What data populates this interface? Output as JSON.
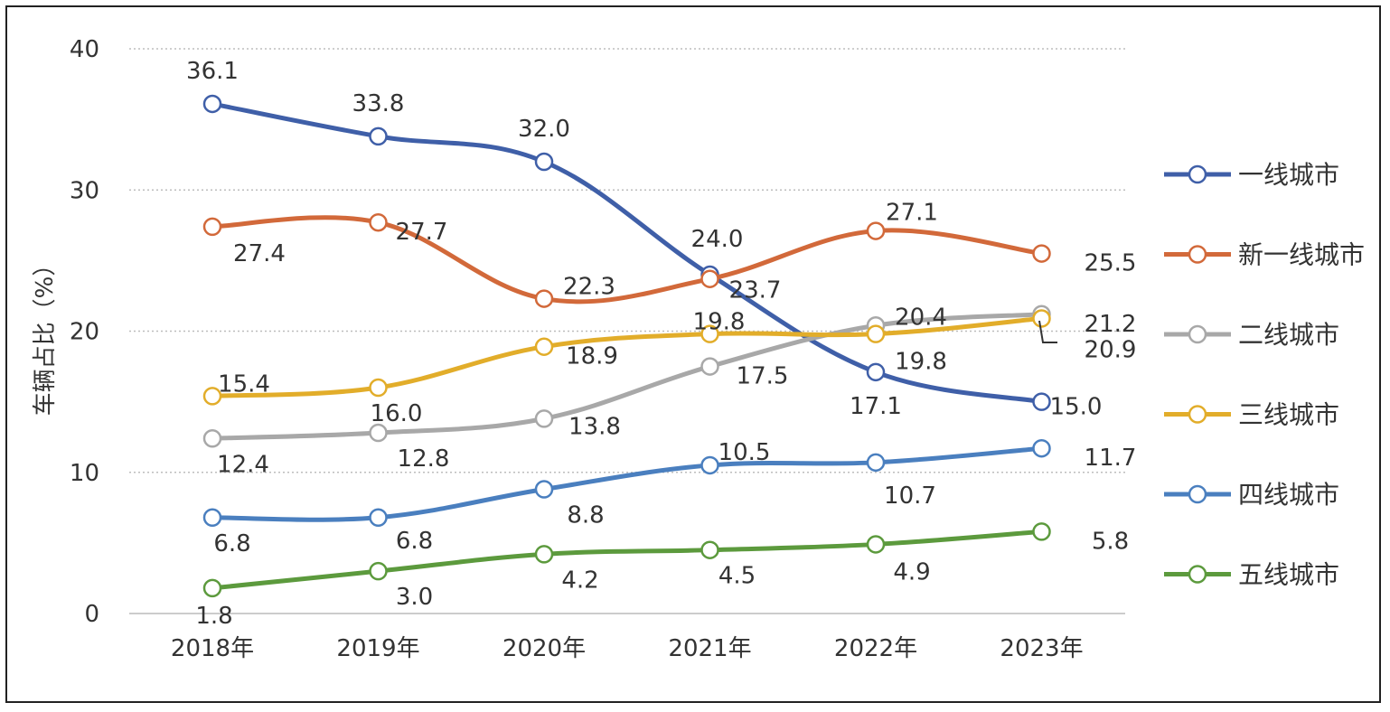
{
  "chart_data": {
    "type": "line",
    "title": "",
    "xlabel": "",
    "ylabel": "车辆占比（%）",
    "ylim": [
      0,
      40
    ],
    "yticks": [
      0,
      10,
      20,
      30,
      40
    ],
    "grid": "horizontal dotted",
    "legend_position": "right",
    "categories": [
      "2018年",
      "2019年",
      "2020年",
      "2021年",
      "2022年",
      "2023年"
    ],
    "series": [
      {
        "name": "一线城市",
        "color": "#3f5fa8",
        "values": [
          36.1,
          33.8,
          32.0,
          24.0,
          17.1,
          15.0
        ]
      },
      {
        "name": "新一线城市",
        "color": "#d2693a",
        "values": [
          27.4,
          27.7,
          22.3,
          23.7,
          27.1,
          25.5
        ]
      },
      {
        "name": "二线城市",
        "color": "#a8a8a8",
        "values": [
          12.4,
          12.8,
          13.8,
          17.5,
          20.4,
          21.2
        ]
      },
      {
        "name": "三线城市",
        "color": "#e2ad2a",
        "values": [
          15.4,
          16.0,
          18.9,
          19.8,
          19.8,
          20.9
        ]
      },
      {
        "name": "四线城市",
        "color": "#4a7fbf",
        "values": [
          6.8,
          6.8,
          8.8,
          10.5,
          10.7,
          11.7
        ]
      },
      {
        "name": "五线城市",
        "color": "#5c9a3d",
        "values": [
          1.8,
          3.0,
          4.2,
          4.5,
          4.9,
          5.8
        ]
      }
    ]
  }
}
